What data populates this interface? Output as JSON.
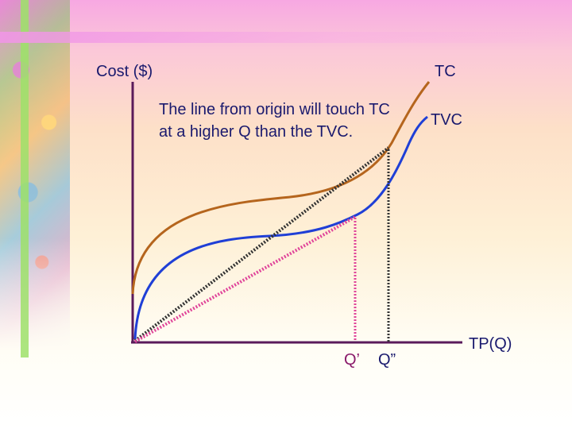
{
  "diagram": {
    "y_axis_label": "Cost ($)",
    "x_axis_label": "TP(Q)",
    "curves": [
      {
        "label": "TC",
        "color": "#b5651d"
      },
      {
        "label": "TVC",
        "color": "#1f3fd6"
      }
    ],
    "rays": [
      {
        "target": "TC",
        "color": "#333333",
        "style": "dotted"
      },
      {
        "target": "TVC",
        "color": "#e0459a",
        "style": "dotted"
      }
    ],
    "quantity_markers": [
      {
        "label": "Q’",
        "color": "#8a1a6a"
      },
      {
        "label": "Q”",
        "color": "#1a1a6e"
      }
    ],
    "note": "The line from origin will touch TC at a higher Q than the TVC.",
    "axis_color": "#5a1a5a"
  }
}
